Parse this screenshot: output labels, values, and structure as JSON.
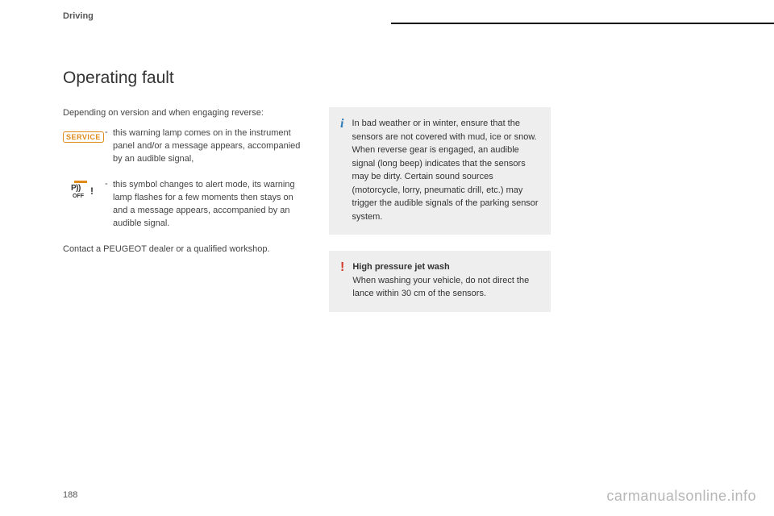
{
  "header": {
    "section_label": "Driving"
  },
  "main": {
    "title": "Operating fault",
    "intro": "Depending on version and when engaging reverse:",
    "items": [
      {
        "icon": "service-badge",
        "badge_text": "SERVICE",
        "bullet": "-",
        "text": "this warning lamp comes on in the instrument panel and/or a message appears, accompanied by an audible signal,"
      },
      {
        "icon": "p-off",
        "p_text": "P))",
        "off_text": "OFF",
        "excl": "!",
        "bullet": "-",
        "text": "this symbol changes to alert mode, its warning lamp flashes for a few moments then stays on and a message appears, accompanied by an audible signal."
      }
    ],
    "closing": "Contact a PEUGEOT dealer or a qualified workshop."
  },
  "side": {
    "info_box": {
      "icon_char": "i",
      "text": "In bad weather or in winter, ensure that the sensors are not covered with mud, ice or snow. When reverse gear is engaged, an audible signal (long beep) indicates that the sensors may be dirty. Certain sound sources (motorcycle, lorry, pneumatic drill, etc.) may trigger the audible signals of the parking sensor system."
    },
    "warning_box": {
      "icon_char": "!",
      "title": "High pressure jet wash",
      "text": "When washing your vehicle, do not direct the lance within 30 cm of the sensors."
    }
  },
  "footer": {
    "page_number": "188",
    "watermark": "carmanualsonline.info"
  },
  "colors": {
    "accent_orange": "#e08a1a",
    "info_blue": "#2a7ab8",
    "warn_red": "#d43a2a",
    "box_bg": "#eeeeee"
  }
}
